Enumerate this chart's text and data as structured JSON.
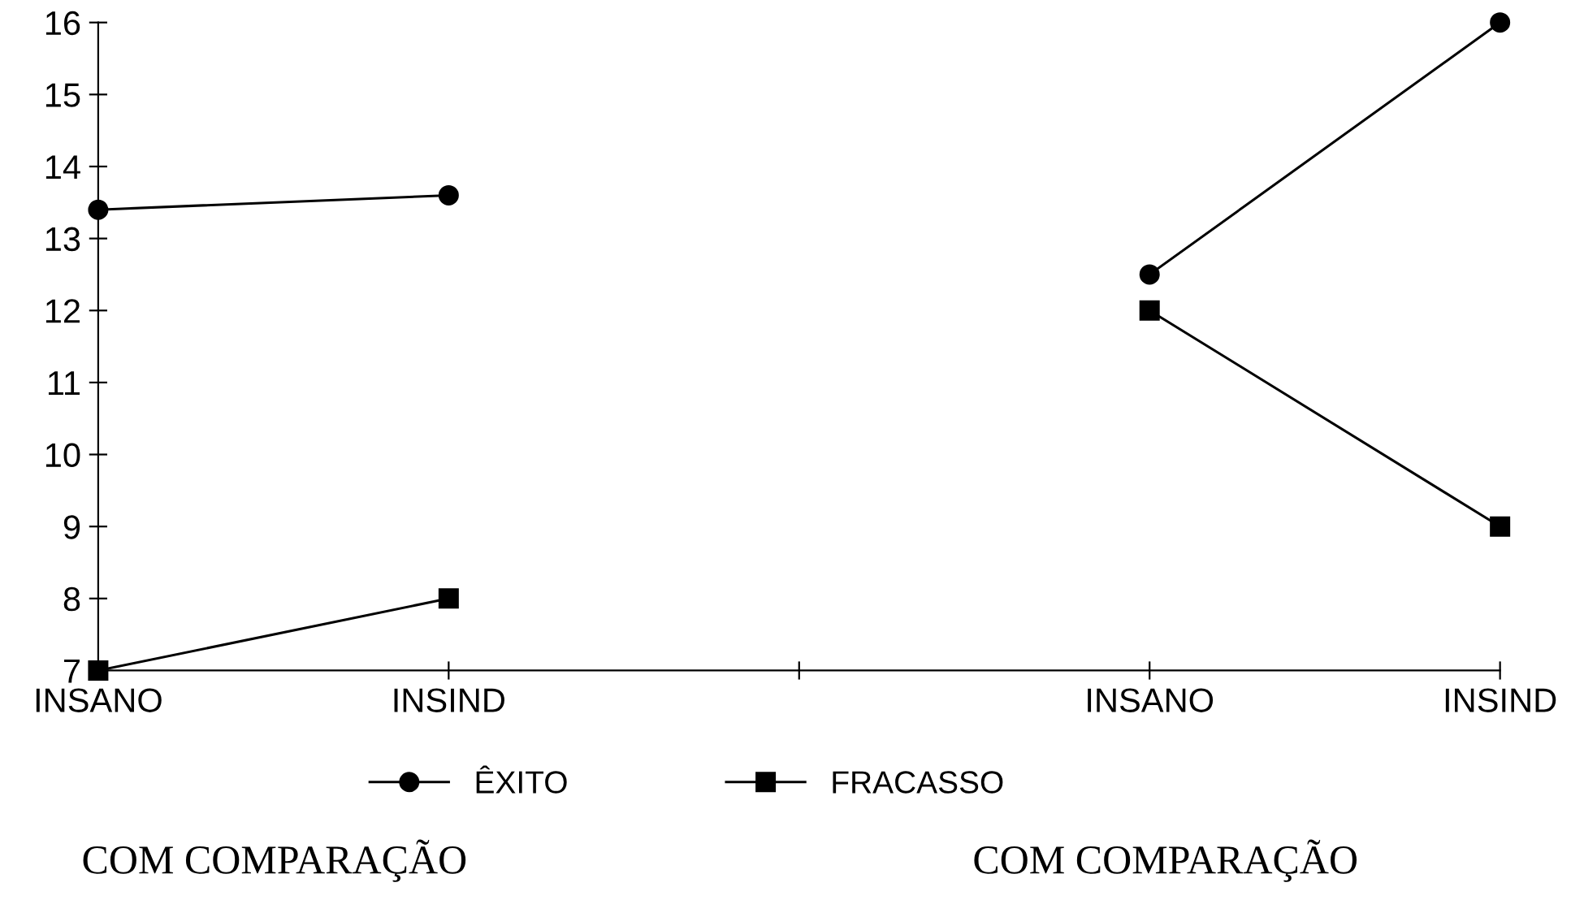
{
  "chart_data": {
    "type": "line",
    "categories": [
      "INSANO",
      "INSIND",
      null,
      "INSANO",
      "INSIND"
    ],
    "series": [
      {
        "name": "ÊXITO",
        "color": "#000000",
        "marker": "circle",
        "values": [
          13.4,
          13.6,
          null,
          12.5,
          16.0
        ]
      },
      {
        "name": "FRACASSO",
        "color": "#000000",
        "marker": "square",
        "values": [
          7,
          8.0,
          null,
          12.0,
          9.0
        ]
      }
    ],
    "ylim": [
      7,
      16
    ],
    "yticks": [
      7,
      8,
      9,
      10,
      11,
      12,
      13,
      14,
      15,
      16
    ],
    "grid": false,
    "legend": "bottom",
    "line_style": "solid",
    "annotations": [
      "COM COMPARAÇÃO",
      "COM COMPARAÇÃO"
    ]
  }
}
